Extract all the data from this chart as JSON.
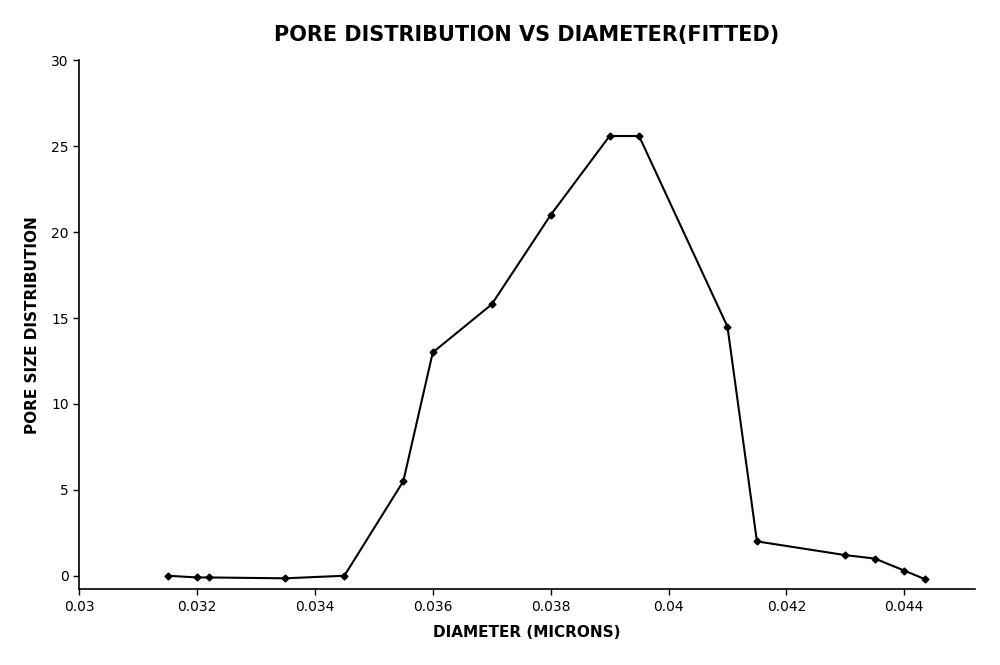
{
  "title": "PORE DISTRIBUTION VS DIAMETER(FITTED)",
  "xlabel": "DIAMETER (MICRONS)",
  "ylabel": "PORE SIZE DISTRIBUTION",
  "xlim": [
    0.03,
    0.0452
  ],
  "ylim": [
    -0.8,
    30
  ],
  "xticks": [
    0.03,
    0.032,
    0.034,
    0.036,
    0.038,
    0.04,
    0.042,
    0.044
  ],
  "yticks": [
    0,
    5,
    10,
    15,
    20,
    25,
    30
  ],
  "x": [
    0.0315,
    0.032,
    0.0322,
    0.0335,
    0.0345,
    0.0355,
    0.036,
    0.037,
    0.038,
    0.039,
    0.0395,
    0.041,
    0.0415,
    0.043,
    0.0435,
    0.044,
    0.04435
  ],
  "y": [
    0.0,
    -0.1,
    -0.1,
    -0.15,
    0.0,
    5.5,
    13.0,
    15.8,
    21.0,
    25.6,
    25.6,
    14.5,
    2.0,
    1.2,
    1.0,
    0.3,
    -0.2
  ],
  "line_color": "#000000",
  "marker": "D",
  "marker_size": 3.5,
  "line_width": 1.5,
  "bg_color": "#ffffff",
  "title_fontsize": 15,
  "label_fontsize": 11,
  "tick_fontsize": 10
}
